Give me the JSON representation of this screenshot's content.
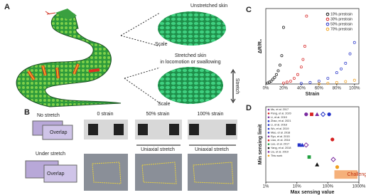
{
  "panels": {
    "a": {
      "label": "A",
      "unstretched": "Unstretched skin",
      "scale_1": "Scale",
      "stretched_1": "Stretched skin",
      "stretched_2": "in locomotion or swallowing",
      "stretch": "Stretch",
      "scale_2": "Scale"
    },
    "b": {
      "label": "B",
      "no_stretch": "No stretch",
      "under_stretch": "Under stretch",
      "overlap_1": "Overlap",
      "overlap_2": "Overlap",
      "strain_0": "0 strain",
      "strain_50": "50% strain",
      "strain_100": "100% strain",
      "uniaxial_1": "Uniaxial stretch",
      "uniaxial_2": "Uniaxial stretch"
    },
    "c": {
      "label": "C"
    },
    "d": {
      "label": "D"
    }
  },
  "chart_data": [
    {
      "type": "scatter",
      "xlabel": "Strain",
      "ylabel": "ΔR/R₀",
      "xlim": [
        0,
        105
      ],
      "ylim": [
        0,
        40
      ],
      "xticks": [
        {
          "value": 0,
          "label": "0%"
        },
        {
          "value": 20,
          "label": "20%"
        },
        {
          "value": 40,
          "label": "40%"
        },
        {
          "value": 60,
          "label": "60%"
        },
        {
          "value": 80,
          "label": "80%"
        },
        {
          "value": 100,
          "label": "100%"
        }
      ],
      "legend": "upper right",
      "log": false,
      "series": [
        {
          "name": "10% prestrain",
          "color": "#111111",
          "x": [
            2,
            4,
            6,
            8,
            10,
            12,
            14,
            16,
            18,
            20
          ],
          "values": [
            0.5,
            1,
            1.5,
            2.5,
            3.5,
            5,
            7,
            10,
            15,
            30
          ]
        },
        {
          "name": "30% prestrain",
          "color": "#d62020",
          "x": [
            20,
            24,
            28,
            32,
            36,
            40,
            42,
            44,
            46
          ],
          "values": [
            0.5,
            1,
            1.5,
            3,
            5,
            9,
            13,
            20,
            36
          ]
        },
        {
          "name": "50% prestrain",
          "color": "#2432c8",
          "x": [
            40,
            50,
            60,
            70,
            80,
            85,
            90,
            95,
            100
          ],
          "values": [
            0.3,
            0.8,
            1.5,
            3,
            6,
            8,
            11,
            16,
            22
          ]
        },
        {
          "name": "70% prestrain",
          "color": "#f0a020",
          "x": [
            60,
            70,
            80,
            90,
            100
          ],
          "values": [
            0.1,
            0.4,
            0.8,
            1.3,
            2
          ]
        }
      ]
    },
    {
      "type": "scatter",
      "xlabel": "Max sensing value",
      "ylabel": "Min sensing limit",
      "xlim": [
        1,
        1000
      ],
      "ylim": [
        0.01,
        10
      ],
      "log": true,
      "xticks": [
        {
          "value": 1,
          "label": "1%"
        },
        {
          "value": 10,
          "label": "10%"
        },
        {
          "value": 100,
          "label": "100%"
        },
        {
          "value": 1000,
          "label": "1000%"
        }
      ],
      "annotation": "Challenge",
      "legend": "upper left",
      "series": [
        {
          "name": "Mu, et al. 2017",
          "color": "#7a2aa0",
          "x": [
            20
          ],
          "values": [
            5
          ]
        },
        {
          "name": "Pang, et al. 2020",
          "color": "#d62020",
          "x": [
            30
          ],
          "values": [
            5
          ]
        },
        {
          "name": "Li, et al. 2019",
          "color": "#7a2aa0",
          "x": [
            45
          ],
          "values": [
            5
          ]
        },
        {
          "name": "Zhao, et al. 2021",
          "color": "#2432c8",
          "x": [
            70
          ],
          "values": [
            5
          ]
        },
        {
          "name": "Li, et al. 2018",
          "color": "#2432c8",
          "x": [
            110
          ],
          "values": [
            5
          ]
        },
        {
          "name": "Wu, et al. 2019",
          "color": "#2432c8",
          "x": [
            12
          ],
          "values": [
            0.3
          ]
        },
        {
          "name": "Mao, et al. 2018",
          "color": "#2432c8",
          "x": [
            15
          ],
          "values": [
            0.3
          ]
        },
        {
          "name": "Ryu, et al. 2015",
          "color": "#7a2aa0",
          "x": [
            20
          ],
          "values": [
            0.3
          ]
        },
        {
          "name": "Liao, et al. 2016",
          "color": "#d62020",
          "x": [
            140
          ],
          "values": [
            0.5
          ]
        },
        {
          "name": "Lee, et al. 2017",
          "color": "#22a040",
          "x": [
            25
          ],
          "values": [
            0.1
          ]
        },
        {
          "name": "Yang, et al. 2018",
          "color": "#111111",
          "x": [
            45
          ],
          "values": [
            0.05
          ]
        },
        {
          "name": "Liu, et al. 2019",
          "color": "#7a2aa0",
          "x": [
            150
          ],
          "values": [
            0.08
          ]
        },
        {
          "name": "This work",
          "color": "#f0a020",
          "x": [
            200
          ],
          "values": [
            0.04
          ]
        }
      ]
    }
  ]
}
